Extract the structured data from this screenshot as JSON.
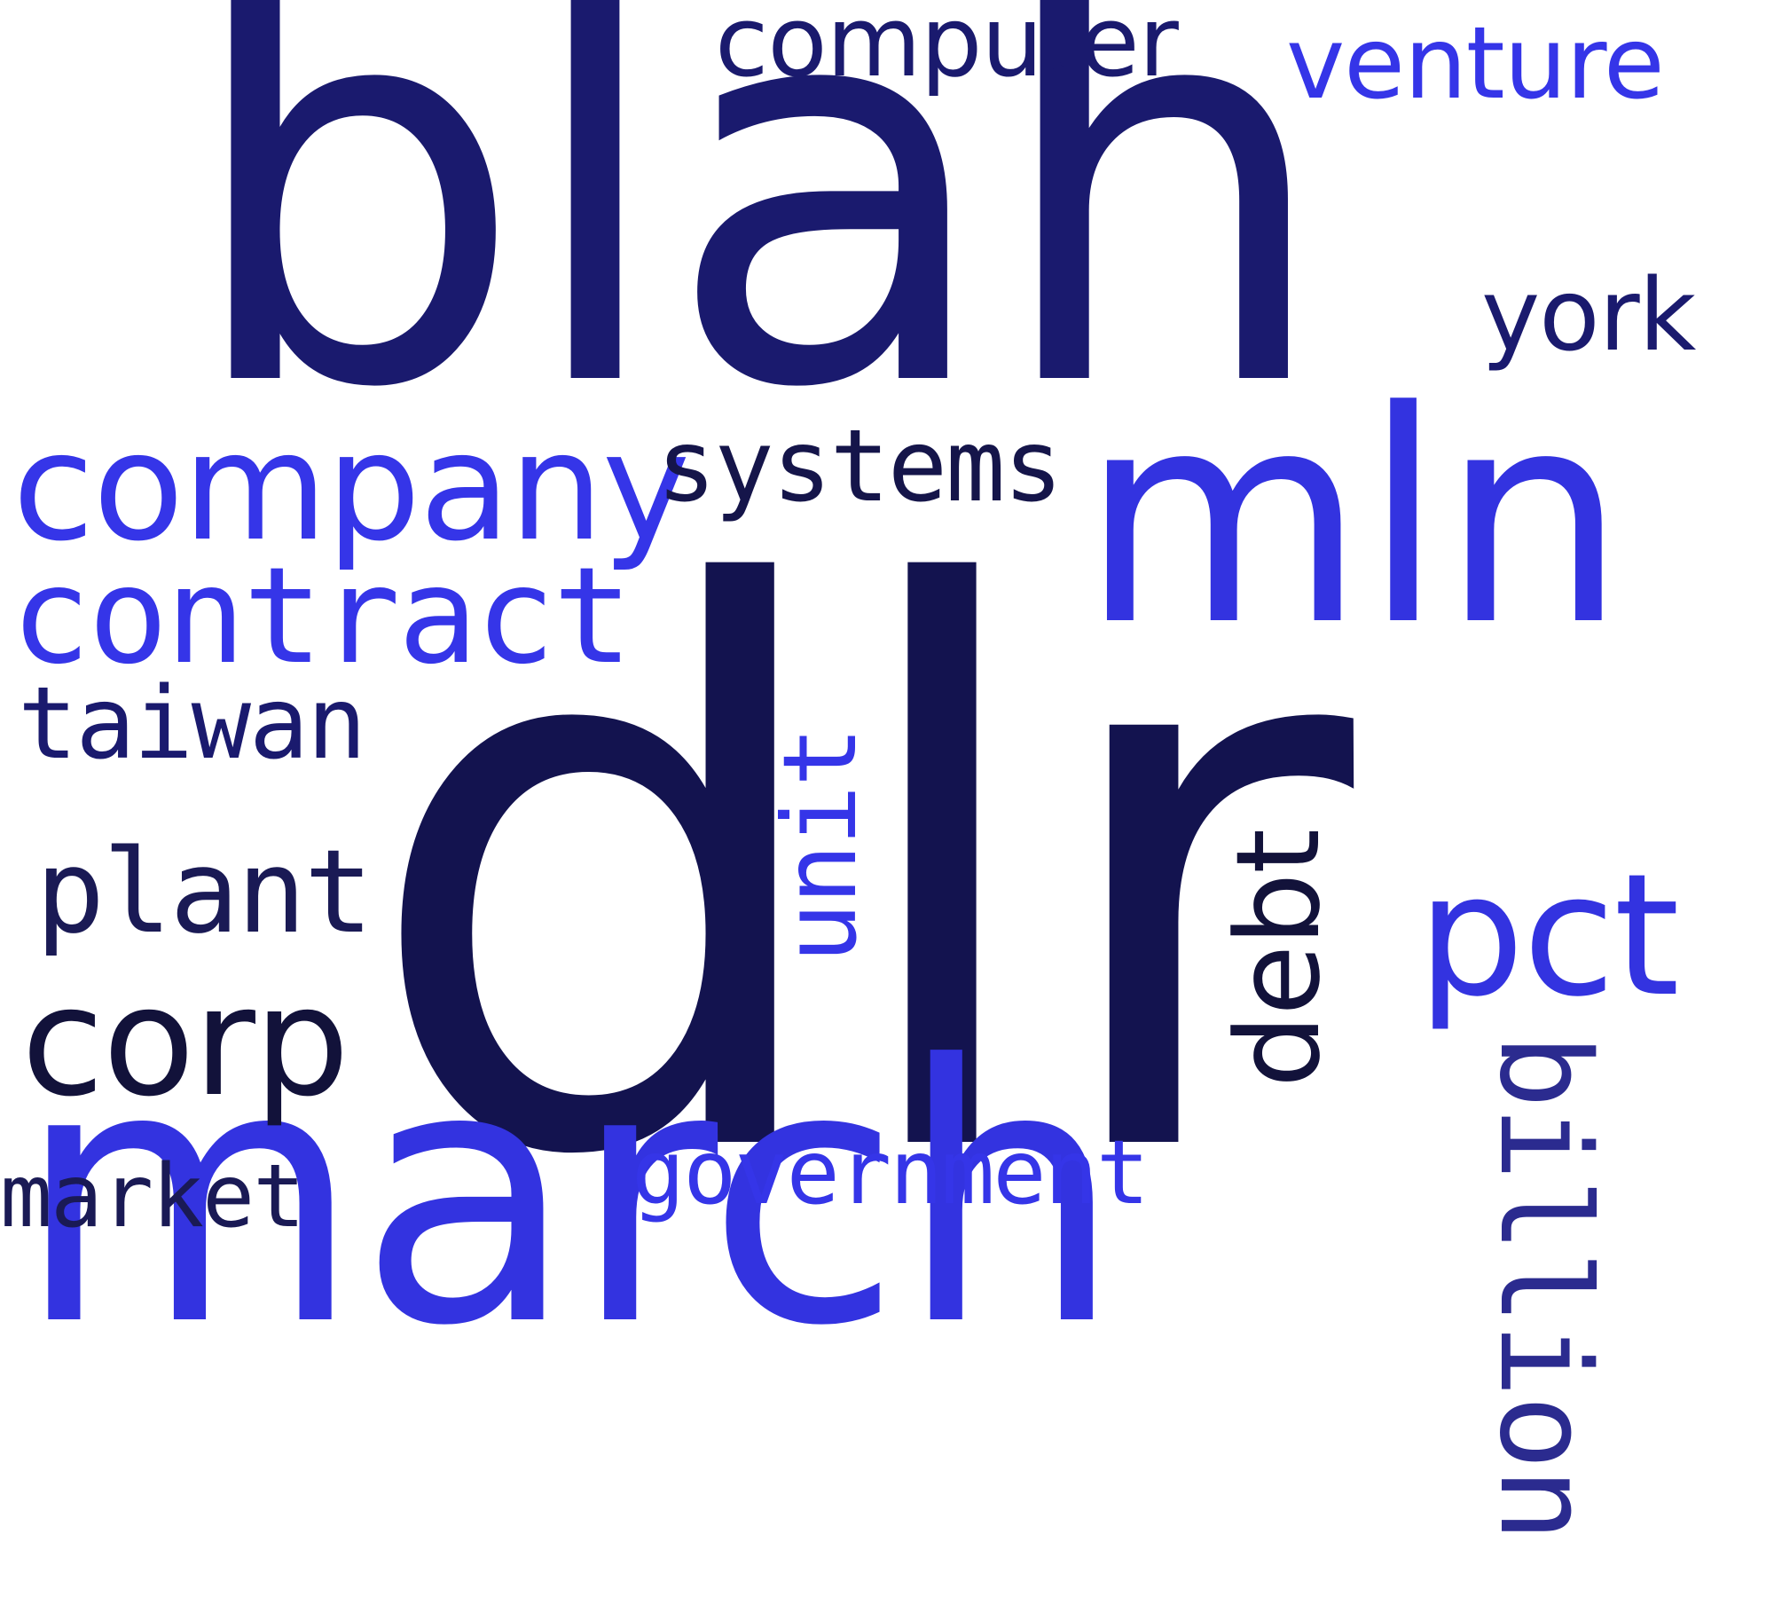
{
  "words": {
    "blah": "blah",
    "dlr": "dlr",
    "march": "march",
    "mln": "mln",
    "company": "company",
    "contract": "contract",
    "systems": "systems",
    "computer": "computer",
    "venture": "venture",
    "york": "york",
    "taiwan": "taiwan",
    "plant": "plant",
    "corp": "corp",
    "market": "market",
    "government": "government",
    "pct": "pct",
    "unit": "unit",
    "debt": "debt",
    "billion": "billion"
  },
  "colors": {
    "navy": "#1a1a6e",
    "dark_navy": "#13134f",
    "indigo": "#2b2b8f",
    "blue": "#3333e0",
    "near_black": "#12123a"
  },
  "word_colors": {
    "blah": "#1a1a6e",
    "dlr": "#13134f",
    "march": "#3333e0",
    "mln": "#3333e0",
    "company": "#3535e8",
    "contract": "#3535e8",
    "systems": "#15154a",
    "computer": "#1a1a6e",
    "venture": "#3535e8",
    "york": "#1a1a6e",
    "taiwan": "#1a1a6e",
    "plant": "#1a1a55",
    "corp": "#12123a",
    "market": "#1a1a55",
    "government": "#3535e8",
    "pct": "#3333e0",
    "unit": "#3535e8",
    "debt": "#12123a",
    "billion": "#2b2b8f"
  }
}
